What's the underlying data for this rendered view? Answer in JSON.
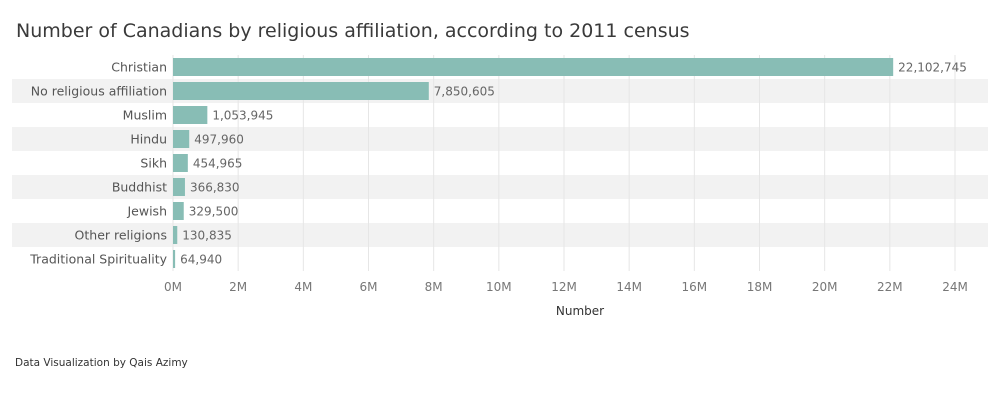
{
  "chart_data": {
    "type": "bar",
    "orientation": "horizontal",
    "title": "Number of Canadians by religious affiliation, according to 2011 census",
    "categories": [
      "Christian",
      "No religious affiliation",
      "Muslim",
      "Hindu",
      "Sikh",
      "Buddhist",
      "Jewish",
      "Other religions",
      "Traditional Spirituality"
    ],
    "values": [
      22102745,
      7850605,
      1053945,
      497960,
      454965,
      366830,
      329500,
      130835,
      64940
    ],
    "value_labels": [
      "22,102,745",
      "7,850,605",
      "1,053,945",
      "497,960",
      "454,965",
      "366,830",
      "329,500",
      "130,835",
      "64,940"
    ],
    "xlabel": "Number",
    "ylabel": "",
    "xlim": [
      0,
      25500000
    ],
    "x_ticks": [
      0,
      2000000,
      4000000,
      6000000,
      8000000,
      10000000,
      12000000,
      14000000,
      16000000,
      18000000,
      20000000,
      22000000,
      24000000
    ],
    "x_tick_labels": [
      "0M",
      "2M",
      "4M",
      "6M",
      "8M",
      "10M",
      "12M",
      "14M",
      "16M",
      "18M",
      "20M",
      "22M",
      "24M"
    ],
    "grid": true,
    "colors": {
      "bar": "#88bdb5",
      "band": "#f2f2f2"
    }
  },
  "footer": {
    "credit": "Data Visualization by Qais Azimy"
  }
}
